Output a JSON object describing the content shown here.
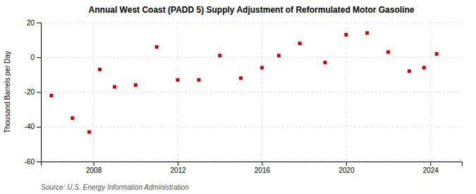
{
  "chart_data": {
    "type": "scatter",
    "title": "Annual West Coast (PADD 5) Supply Adjustment of Reformulated Motor Gasoline",
    "ylabel": "Thousand Barrels per Day",
    "source": "Source: U.S. Energy Information Administration",
    "x": [
      2006,
      2007,
      2007.8,
      2008.3,
      2009,
      2010,
      2011,
      2012,
      2013,
      2014,
      2015,
      2016,
      2016.8,
      2017.8,
      2019,
      2020,
      2021,
      2022,
      2023,
      2023.7,
      2024.3
    ],
    "values": [
      -22,
      -35,
      -43,
      -7,
      -17,
      -16,
      6,
      -13,
      -13,
      1,
      -12,
      -6,
      1,
      8,
      -3,
      13,
      14,
      3,
      -8,
      -6,
      2
    ],
    "color": "#cc0000",
    "marker": "square",
    "xlim": [
      2005.5,
      2025.5
    ],
    "ylim": [
      -60,
      20
    ],
    "xticks": [
      2008,
      2012,
      2016,
      2020,
      2024
    ],
    "yticks": [
      -60,
      -40,
      -20,
      0,
      20
    ],
    "grid": true
  }
}
